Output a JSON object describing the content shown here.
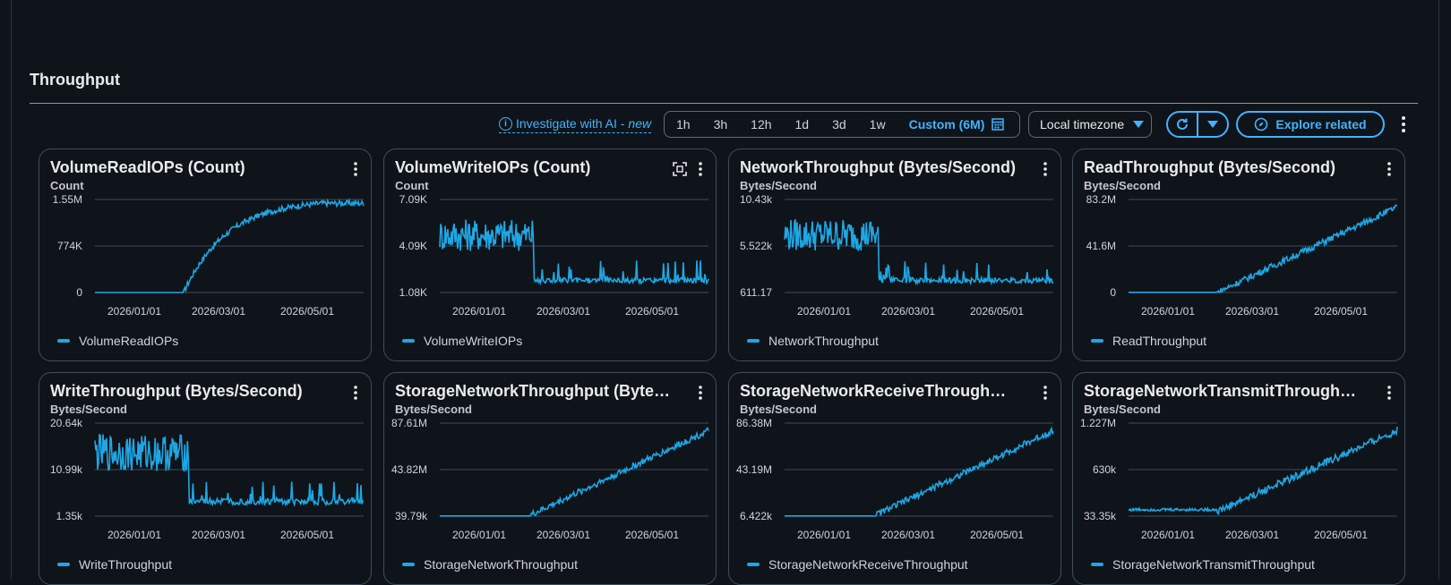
{
  "section": {
    "title": "Throughput"
  },
  "toolbar": {
    "investigate_label": "Investigate with AI - ",
    "investigate_badge": "new",
    "ranges": [
      "1h",
      "3h",
      "12h",
      "1d",
      "3d",
      "1w"
    ],
    "custom_range": "Custom (6M)",
    "timezone": "Local timezone",
    "explore_label": "Explore related"
  },
  "colors": {
    "series": "#1ea7e4",
    "accent": "#42b4ff",
    "background": "#0f141a",
    "panel_border": "#414d5c"
  },
  "x_ticks": [
    "2026/01/01",
    "2026/03/01",
    "2026/05/01"
  ],
  "panels": [
    {
      "title": "VolumeReadIOPs (Count)",
      "unit": "Count",
      "y_ticks": [
        "1.55M",
        "774K",
        "0"
      ],
      "legend": "VolumeReadIOPs",
      "shape": "rise_saturate",
      "expand_icon": false
    },
    {
      "title": "VolumeWriteIOPs (Count)",
      "unit": "Count",
      "y_ticks": [
        "7.09K",
        "4.09K",
        "1.08K"
      ],
      "legend": "VolumeWriteIOPs",
      "shape": "high_drop",
      "expand_icon": true
    },
    {
      "title": "NetworkThroughput (Bytes/Second)",
      "unit": "Bytes/Second",
      "y_ticks": [
        "10.43k",
        "5.522k",
        "611.17"
      ],
      "legend": "NetworkThroughput",
      "shape": "high_drop",
      "expand_icon": false
    },
    {
      "title": "ReadThroughput (Bytes/Second)",
      "unit": "Bytes/Second",
      "y_ticks": [
        "83.2M",
        "41.6M",
        "0"
      ],
      "legend": "ReadThroughput",
      "shape": "rise_linear",
      "expand_icon": false
    },
    {
      "title": "WriteThroughput (Bytes/Second)",
      "unit": "Bytes/Second",
      "y_ticks": [
        "20.64k",
        "10.99k",
        "1.35k"
      ],
      "legend": "WriteThroughput",
      "shape": "high_drop_early",
      "expand_icon": false
    },
    {
      "title": "StorageNetworkThroughput (Byte…",
      "unit": "Bytes/Second",
      "y_ticks": [
        "87.61M",
        "43.82M",
        "39.79k"
      ],
      "legend": "StorageNetworkThroughput",
      "shape": "rise_linear",
      "expand_icon": false
    },
    {
      "title": "StorageNetworkReceiveThroughp…",
      "unit": "Bytes/Second",
      "y_ticks": [
        "86.38M",
        "43.19M",
        "6.422k"
      ],
      "legend": "StorageNetworkReceiveThroughput",
      "shape": "rise_linear",
      "expand_icon": false
    },
    {
      "title": "StorageNetworkTransmitThrough…",
      "unit": "Bytes/Second",
      "y_ticks": [
        "1.227M",
        "630k",
        "33.35k"
      ],
      "legend": "StorageNetworkTransmitThroughput",
      "shape": "rise_linear_base",
      "expand_icon": false
    }
  ]
}
